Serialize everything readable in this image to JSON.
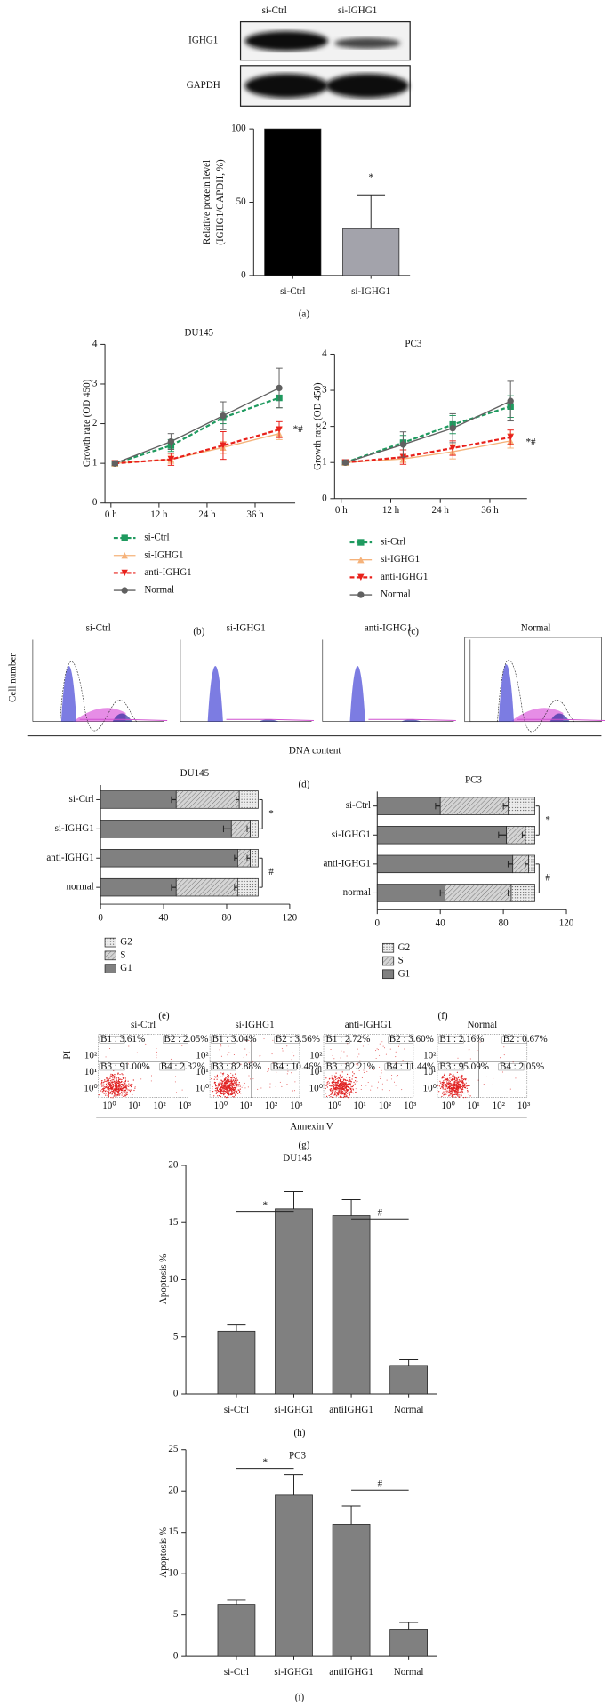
{
  "chart_data": [
    {
      "type": "bar",
      "categories": [
        "si-Ctrl",
        "si-IGHG1"
      ],
      "values": [
        100,
        32
      ],
      "errors": [
        null,
        23
      ],
      "colors": [
        "#000000",
        "#a3a3ab"
      ],
      "ylim": [
        0,
        100
      ],
      "yticks": [
        0,
        50,
        100
      ],
      "ylabel": [
        "Relative protein level",
        "(IGHG1/GAPDH, %)"
      ],
      "annotations": [
        "*"
      ]
    },
    {
      "type": "line",
      "title": "DU145",
      "x": [
        1,
        15,
        28,
        42
      ],
      "xlim": [
        -1.5,
        46
      ],
      "xticks": [
        {
          "value": 0,
          "label": "0 h"
        },
        {
          "value": 12,
          "label": "12 h"
        },
        {
          "value": 24,
          "label": "24 h"
        },
        {
          "value": 36,
          "label": "36 h"
        }
      ],
      "ylim": [
        0,
        4
      ],
      "yticks": [
        0,
        1,
        2,
        3,
        4
      ],
      "ylabel": "Growth rate (OD 450)",
      "annotation": "*#",
      "series": [
        {
          "name": "si-Ctrl",
          "color": "#1f9a5f",
          "marker": "square",
          "dashed": true,
          "values": [
            1.0,
            1.45,
            2.15,
            2.65
          ],
          "errors": [
            0.05,
            0.15,
            0.15,
            0.25
          ]
        },
        {
          "name": "si-IGHG1",
          "color": "#f5b27a",
          "marker": "triangle",
          "dashed": false,
          "values": [
            1.0,
            1.1,
            1.4,
            1.75
          ],
          "errors": [
            0.05,
            0.1,
            0.15,
            0.15
          ]
        },
        {
          "name": "anti-IGHG1",
          "color": "#e8201a",
          "marker": "triangle-down",
          "dashed": true,
          "values": [
            1.0,
            1.1,
            1.45,
            1.85
          ],
          "errors": [
            0.05,
            0.15,
            0.35,
            0.2
          ]
        },
        {
          "name": "Normal",
          "color": "#606060",
          "marker": "circle",
          "dashed": false,
          "values": [
            1.0,
            1.55,
            2.2,
            2.9
          ],
          "errors": [
            0.05,
            0.2,
            0.35,
            0.5
          ]
        }
      ]
    },
    {
      "type": "line",
      "title": "PC3",
      "x": [
        1,
        15,
        27,
        41
      ],
      "xlim": [
        -1.6,
        45
      ],
      "xticks": [
        {
          "value": 0,
          "label": "0 h"
        },
        {
          "value": 12,
          "label": "12 h"
        },
        {
          "value": 24,
          "label": "24 h"
        },
        {
          "value": 36,
          "label": "36 h"
        }
      ],
      "ylim": [
        0,
        4
      ],
      "yticks": [
        0,
        1,
        2,
        3,
        4
      ],
      "ylabel": "Growth rate (OD 450)",
      "annotation": "*#",
      "series": [
        {
          "name": "si-Ctrl",
          "color": "#1f9a5f",
          "marker": "square",
          "dashed": true,
          "values": [
            1.0,
            1.55,
            2.05,
            2.55
          ],
          "errors": [
            0.05,
            0.2,
            0.25,
            0.3
          ]
        },
        {
          "name": "si-IGHG1",
          "color": "#f5b27a",
          "marker": "triangle",
          "dashed": false,
          "values": [
            1.0,
            1.1,
            1.3,
            1.6
          ],
          "errors": [
            0.05,
            0.1,
            0.2,
            0.2
          ]
        },
        {
          "name": "anti-IGHG1",
          "color": "#e8201a",
          "marker": "triangle-down",
          "dashed": true,
          "values": [
            1.0,
            1.15,
            1.4,
            1.7
          ],
          "errors": [
            0.05,
            0.2,
            0.2,
            0.2
          ]
        },
        {
          "name": "Normal",
          "color": "#606060",
          "marker": "circle",
          "dashed": false,
          "values": [
            1.0,
            1.5,
            1.95,
            2.7
          ],
          "errors": [
            0.05,
            0.35,
            0.4,
            0.55
          ]
        }
      ]
    },
    {
      "type": "barh-stacked",
      "title": "DU145",
      "categories": [
        "si-Ctrl",
        "si-IGHG1",
        "anti-IGHG1",
        "normal"
      ],
      "xlim": [
        0,
        120
      ],
      "xticks": [
        0,
        40,
        80,
        120
      ],
      "annotations": [
        "*",
        "#"
      ],
      "series": [
        {
          "name": "G1",
          "color": "#808080",
          "hatch": null,
          "values": [
            48,
            83,
            87,
            48
          ],
          "errors": [
            3,
            5,
            2,
            3
          ]
        },
        {
          "name": "S",
          "color": "#d4d4d4",
          "hatch": "diagonal",
          "values": [
            40,
            12,
            8,
            39
          ],
          "errors": [
            2,
            2,
            2,
            2
          ]
        },
        {
          "name": "G2",
          "color": "#ececec",
          "hatch": "dots",
          "values": [
            12,
            5,
            5,
            13
          ]
        }
      ]
    },
    {
      "type": "barh-stacked",
      "title": "PC3",
      "categories": [
        "si-Ctrl",
        "si-IGHG1",
        "anti-IGHG1",
        "normal"
      ],
      "xlim": [
        0,
        120
      ],
      "xticks": [
        0,
        40,
        80,
        120
      ],
      "annotations": [
        "*",
        "#"
      ],
      "series": [
        {
          "name": "G1",
          "color": "#808080",
          "hatch": null,
          "values": [
            40,
            82,
            86,
            43
          ],
          "errors": [
            3,
            5,
            3,
            3
          ]
        },
        {
          "name": "S",
          "color": "#d4d4d4",
          "hatch": "diagonal",
          "values": [
            43,
            12,
            10,
            42
          ],
          "errors": [
            3,
            2,
            2,
            2
          ]
        },
        {
          "name": "G2",
          "color": "#ececec",
          "hatch": "dots",
          "values": [
            17,
            6,
            4,
            15
          ]
        }
      ]
    },
    {
      "type": "bar",
      "title": "DU145",
      "categories": [
        "si-Ctrl",
        "si-IGHG1",
        "antiIGHG1",
        "Normal"
      ],
      "values": [
        5.5,
        16.2,
        15.6,
        2.5
      ],
      "errors": [
        0.6,
        1.5,
        1.4,
        0.5
      ],
      "color": "#808080",
      "ylim": [
        0,
        20
      ],
      "yticks": [
        0,
        5,
        10,
        15,
        20
      ],
      "ylabel": "Apoptosis %",
      "annotations": [
        "*",
        "#"
      ]
    },
    {
      "type": "bar",
      "title": "PC3",
      "categories": [
        "si-Ctrl",
        "si-IGHG1",
        "antiIGHG1",
        "Normal"
      ],
      "values": [
        6.3,
        19.5,
        16.0,
        3.3
      ],
      "errors": [
        0.5,
        2.5,
        2.2,
        0.8
      ],
      "color": "#808080",
      "ylim": [
        0,
        25
      ],
      "yticks": [
        0,
        5,
        10,
        15,
        20,
        25
      ],
      "ylabel": "Apoptosis %",
      "annotations": [
        "*",
        "#"
      ]
    }
  ],
  "blot": {
    "lanes": [
      "si-Ctrl",
      "si-IGHG1"
    ],
    "rows": [
      "IGHG1",
      "GAPDH"
    ]
  },
  "cell_cycle_histograms": {
    "titles": [
      "si-Ctrl",
      "si-IGHG1",
      "anti-IGHG1",
      "Normal"
    ],
    "ylabel": "Cell number",
    "xlabel": "DNA content"
  },
  "flow_plots": {
    "titles": [
      "si-Ctrl",
      "si-IGHG1",
      "anti-IGHG1",
      "Normal"
    ],
    "quadrants": [
      [
        "B1 : 3.61%",
        "B2 : 2.05%",
        "B3 : 91.00%",
        "B4 : 2.32%"
      ],
      [
        "B1 : 3.04%",
        "B2 : 3.56%",
        "B3 : 82.88%",
        "B4 : 10.46%"
      ],
      [
        "B1 : 2.72%",
        "B2 : 3.60%",
        "B3 : 82.21%",
        "B4 : 11.44%"
      ],
      [
        "B1 : 2.16%",
        "B2 : 0.67%",
        "B3 : 95.09%",
        "B4 : 2.05%"
      ]
    ],
    "ticks": [
      "10⁰",
      "10¹",
      "10²",
      "10³"
    ],
    "ylabel": "PI",
    "xlabel": "Annexin V"
  },
  "panel_labels": [
    "(a)",
    "(b)",
    "(c)",
    "(d)",
    "(e)",
    "(f)",
    "(g)",
    "(h)",
    "(i)"
  ]
}
